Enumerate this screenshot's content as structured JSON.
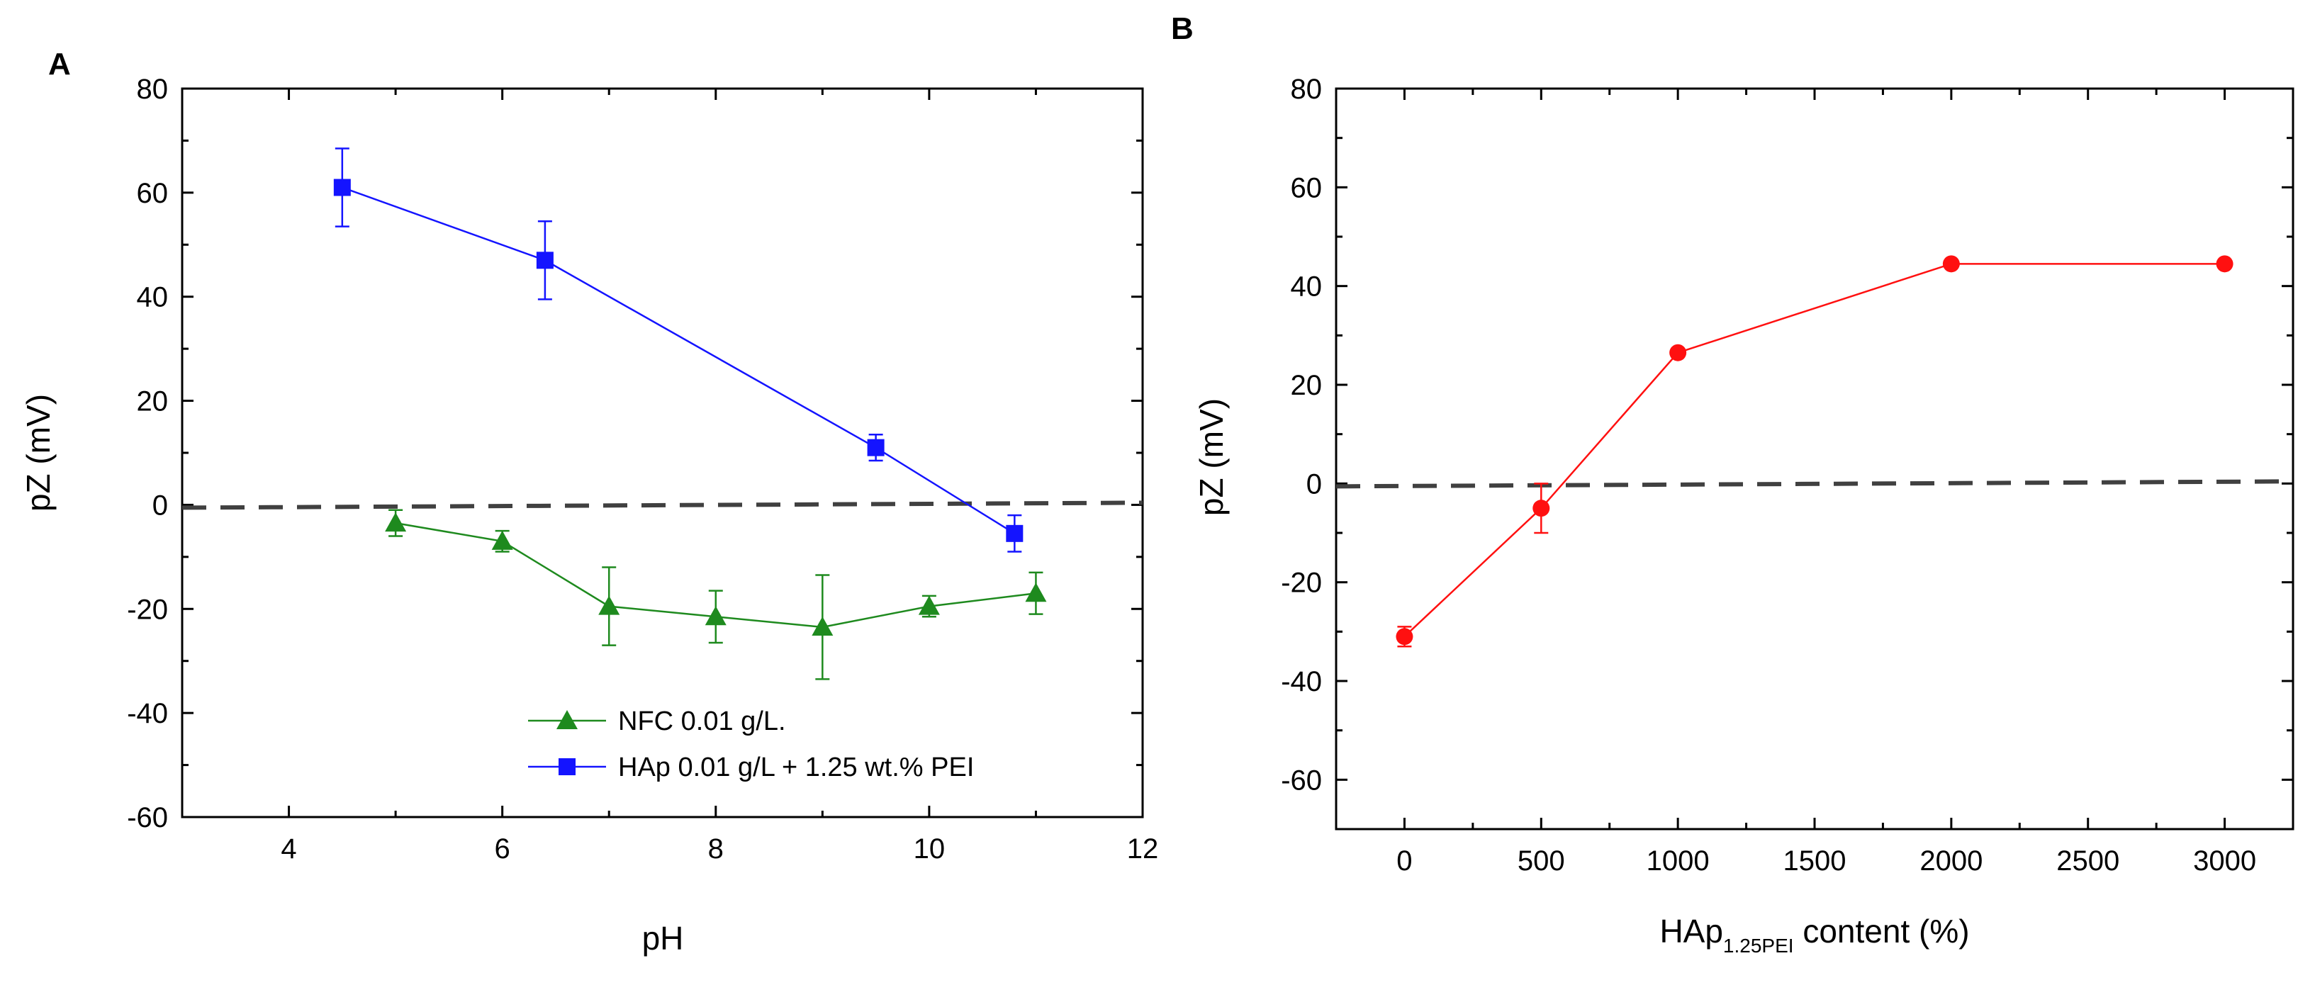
{
  "chart_data": [
    {
      "panel": "A",
      "type": "line",
      "xlabel": "pH",
      "ylabel": "pZ (mV)",
      "xlim": [
        3,
        12
      ],
      "ylim": [
        -60,
        80
      ],
      "xticks": [
        4,
        6,
        8,
        10,
        12
      ],
      "yticks": [
        -60,
        -40,
        -20,
        0,
        20,
        40,
        60,
        80
      ],
      "reference_line": {
        "y": 0,
        "style": "dashed",
        "color": "#404040"
      },
      "legend_position": "bottom-center",
      "series": [
        {
          "name": "NFC 0.01 g/L.",
          "marker": "triangle",
          "color": "#1e8a1e",
          "x": [
            5,
            6,
            7,
            8,
            9,
            10,
            11
          ],
          "y": [
            -3.5,
            -7,
            -19.5,
            -21.5,
            -23.5,
            -19.5,
            -17
          ],
          "err": [
            2.5,
            2,
            7.5,
            5,
            10,
            2,
            4
          ]
        },
        {
          "name": "HAp 0.01 g/L + 1.25 wt.% PEI",
          "marker": "square",
          "color": "#1414ff",
          "x": [
            4.5,
            6.4,
            9.5,
            10.8
          ],
          "y": [
            61,
            47,
            11,
            -5.5
          ],
          "err": [
            7.5,
            7.5,
            2.5,
            3.5
          ]
        }
      ]
    },
    {
      "panel": "B",
      "type": "line",
      "xlabel_main": "HAp",
      "xlabel_sub": "1.25PEI",
      "xlabel_tail": " content (%)",
      "ylabel": "pZ (mV)",
      "xlim": [
        -250,
        3250
      ],
      "ylim": [
        -70,
        80
      ],
      "xticks": [
        0,
        500,
        1000,
        1500,
        2000,
        2500,
        3000
      ],
      "yticks": [
        -60,
        -40,
        -20,
        0,
        20,
        40,
        60,
        80
      ],
      "reference_line": {
        "y": 0,
        "style": "dashed",
        "color": "#404040"
      },
      "series": [
        {
          "name": "HAp1.25PEI",
          "marker": "circle",
          "color": "#ff1010",
          "x": [
            0,
            500,
            1000,
            2000,
            3000
          ],
          "y": [
            -31,
            -5,
            26.5,
            44.5,
            44.5
          ],
          "err": [
            2,
            5,
            0.8,
            0.5,
            0.5
          ]
        }
      ]
    }
  ]
}
